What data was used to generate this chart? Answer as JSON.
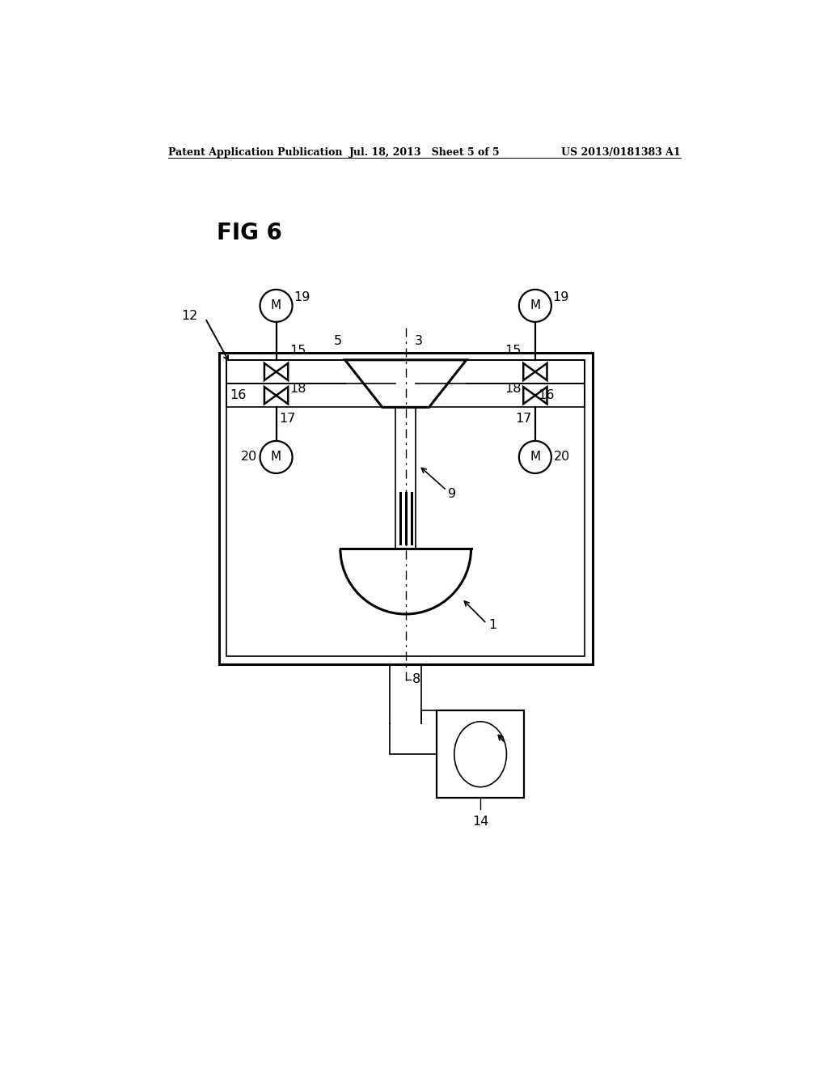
{
  "bg_color": "#ffffff",
  "line_color": "#000000",
  "header_left": "Patent Application Publication",
  "header_mid": "Jul. 18, 2013   Sheet 5 of 5",
  "header_right": "US 2013/0181383 A1",
  "fig_label": "FIG 6",
  "label_12": "12",
  "label_19a": "19",
  "label_19b": "19",
  "label_15a": "15",
  "label_15b": "15",
  "label_5": "5",
  "label_3": "3",
  "label_18a": "18",
  "label_18b": "18",
  "label_16a": "16",
  "label_16b": "16",
  "label_17a": "17",
  "label_17b": "17",
  "label_20a": "20",
  "label_20b": "20",
  "label_9": "9",
  "label_1": "1",
  "label_8": "8",
  "label_14": "14"
}
